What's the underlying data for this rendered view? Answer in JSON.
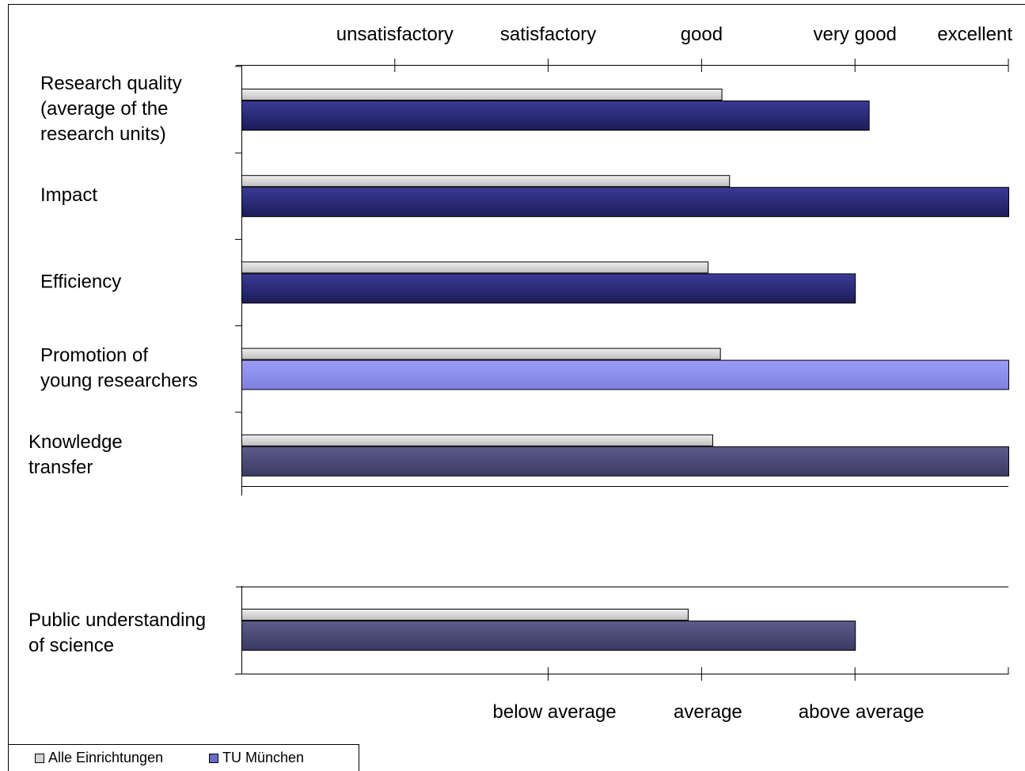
{
  "chart_data": [
    {
      "type": "bar",
      "orientation": "horizontal",
      "categories": [
        [
          "Research quality",
          "(average of the",
          "research units)"
        ],
        [
          "Impact"
        ],
        [
          "Efficiency"
        ],
        [
          "Promotion of",
          "young researchers"
        ],
        [
          "Knowledge",
          "transfer"
        ]
      ],
      "top_axis_labels": [
        "unsatisfactory",
        "satisfactory",
        "good",
        "very good",
        "excellent"
      ],
      "xlim": [
        0,
        5
      ],
      "series": [
        {
          "name": "Alle Einrichtungen",
          "values": [
            3.13,
            3.18,
            3.04,
            3.12,
            3.07
          ]
        },
        {
          "name": "TU München",
          "values": [
            4.09,
            5.0,
            4.0,
            5.0,
            5.0
          ]
        }
      ]
    },
    {
      "type": "bar",
      "orientation": "horizontal",
      "categories": [
        [
          "Public understanding",
          "of science"
        ]
      ],
      "bottom_axis_labels": [
        "below average",
        "average",
        "above average"
      ],
      "xlim": [
        0,
        5
      ],
      "series": [
        {
          "name": "Alle Einrichtungen",
          "values": [
            2.91
          ]
        },
        {
          "name": "TU München",
          "values": [
            4.0
          ]
        }
      ]
    }
  ],
  "legend": {
    "placement": "bottom-left",
    "items": [
      "Alle Einrichtungen",
      "TU München"
    ]
  },
  "colors": {
    "alle": "#d4d4d4",
    "tum_dark": "#2a2a80",
    "tum_light": "#8f8fee",
    "tum_grey": "#4a4a78",
    "legend_tum": "#6a6acc",
    "axis": "#000000"
  }
}
